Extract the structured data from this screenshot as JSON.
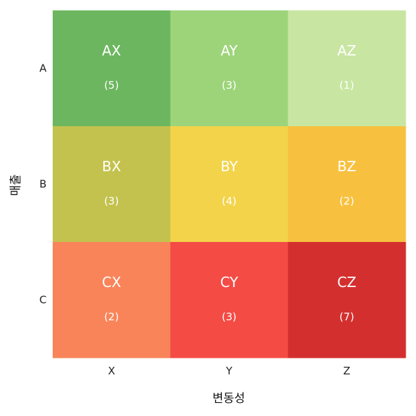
{
  "chart_data": {
    "type": "heatmap",
    "xlabel": "변동성",
    "ylabel": "매출",
    "x_categories": [
      "X",
      "Y",
      "Z"
    ],
    "y_categories": [
      "A",
      "B",
      "C"
    ],
    "cells": [
      {
        "row": "A",
        "col": "X",
        "label": "AX",
        "count": "(5)",
        "color": "#6db660"
      },
      {
        "row": "A",
        "col": "Y",
        "label": "AY",
        "count": "(3)",
        "color": "#9dd47a"
      },
      {
        "row": "A",
        "col": "Z",
        "label": "AZ",
        "count": "(1)",
        "color": "#c8e6a2"
      },
      {
        "row": "B",
        "col": "X",
        "label": "BX",
        "count": "(3)",
        "color": "#c3c24e"
      },
      {
        "row": "B",
        "col": "Y",
        "label": "BY",
        "count": "(4)",
        "color": "#f3d34a"
      },
      {
        "row": "B",
        "col": "Z",
        "label": "BZ",
        "count": "(2)",
        "color": "#f7c13f"
      },
      {
        "row": "C",
        "col": "X",
        "label": "CX",
        "count": "(2)",
        "color": "#f9845a"
      },
      {
        "row": "C",
        "col": "Y",
        "label": "CY",
        "count": "(3)",
        "color": "#f44b45"
      },
      {
        "row": "C",
        "col": "Z",
        "label": "CZ",
        "count": "(7)",
        "color": "#d42f2f"
      }
    ]
  }
}
